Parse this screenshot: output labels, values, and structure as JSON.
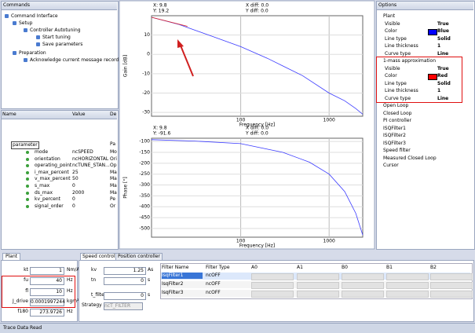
{
  "commands": {
    "title": "Commands",
    "items": [
      "Command Interface",
      "Setup",
      "Controller Autotuning",
      "Start tuning",
      "Save parameters",
      "Preparation",
      "Acknowledge current message record"
    ]
  },
  "parameters": {
    "headers": [
      "Name",
      "Value",
      "De"
    ],
    "root": [
      "parameter",
      "Pa"
    ],
    "rows": [
      [
        "mode",
        "ncSPEED",
        "Mo"
      ],
      [
        "orientation",
        "ncHORIZONTAL",
        "Ori"
      ],
      [
        "operating_point",
        "ncTUNE_STAN...",
        "Op"
      ],
      [
        "i_max_percent",
        "25",
        "Ma"
      ],
      [
        "v_max_percent",
        "50",
        "Ma"
      ],
      [
        "s_max",
        "0",
        "Ma"
      ],
      [
        "ds_max",
        "2000",
        "Ma"
      ],
      [
        "kv_percent",
        "0",
        "Pe"
      ],
      [
        "signal_order",
        "0",
        "Or"
      ]
    ]
  },
  "plots": [
    {
      "cursor_x": "X: 9.8",
      "cursor_y": "Y: 19.2",
      "x_diff": "X diff: 0.0",
      "y_diff": "Y diff: 0.0",
      "ylabel": "Gain [dB]",
      "xlabel": "Frequency [Hz]",
      "log_x": true,
      "xlim": [
        9.8,
        2400
      ],
      "ylim": [
        -32,
        20
      ],
      "xticks": [
        100,
        1000
      ],
      "yticks": [
        10,
        0,
        -10,
        -20,
        -30
      ],
      "series": [
        {
          "color": "#3a3aff",
          "x": [
            9.8,
            20,
            50,
            100,
            200,
            300,
            500,
            1000,
            1500,
            2000,
            2400
          ],
          "y": [
            19.2,
            15.5,
            9,
            4,
            -2,
            -6,
            -11,
            -20,
            -24,
            -28,
            -31
          ]
        },
        {
          "color": "#e02020",
          "x": [
            9.8,
            25
          ],
          "y": [
            19.2,
            14.5
          ]
        }
      ]
    },
    {
      "cursor_x": "X: 9.8",
      "cursor_y": "Y: -91.6",
      "x_diff": "X diff: 0.0",
      "y_diff": "Y diff: 0.0",
      "ylabel": "Phase [°]",
      "xlabel": "Frequency [Hz]",
      "log_x": true,
      "xlim": [
        9.8,
        2400
      ],
      "ylim": [
        -540,
        -85
      ],
      "xticks": [
        100,
        1000
      ],
      "yticks": [
        -100,
        -150,
        -200,
        -250,
        -300,
        -350,
        -400,
        -450,
        -500
      ],
      "series": [
        {
          "color": "#3a3aff",
          "x": [
            9.8,
            30,
            100,
            300,
            600,
            1000,
            1500,
            2000,
            2400
          ],
          "y": [
            -91.6,
            -98,
            -110,
            -150,
            -195,
            -250,
            -330,
            -430,
            -530
          ]
        }
      ]
    }
  ],
  "options": {
    "title": "Options",
    "groups": [
      {
        "name": "Plant",
        "props": [
          [
            "Visible",
            "True"
          ],
          [
            "Color",
            "Blue"
          ],
          [
            "Line type",
            "Solid"
          ],
          [
            "Line thickness",
            "1"
          ],
          [
            "Curve type",
            "Line"
          ]
        ]
      },
      {
        "name": "1-mass approximation",
        "props": [
          [
            "Visible",
            "True"
          ],
          [
            "Color",
            "Red"
          ],
          [
            "Line type",
            "Solid"
          ],
          [
            "Line thickness",
            "1"
          ],
          [
            "Curve type",
            "Line"
          ]
        ]
      }
    ],
    "collapsed": [
      "Open Loop",
      "Closed Loop",
      "PI controller",
      "ISQFilter1",
      "ISQFilter2",
      "ISQFilter3",
      "Speed filter",
      "Measured Closed Loop",
      "Cursor"
    ]
  },
  "plant": {
    "tab": "Plant",
    "rows": [
      [
        "kt",
        "1",
        "Nm/A"
      ],
      [
        "fu",
        "40",
        "Hz"
      ],
      [
        "fl",
        "10",
        "Hz"
      ],
      [
        "J_drive",
        "0.0001997244",
        "kgm²"
      ],
      [
        "f180",
        "273.9726",
        "Hz"
      ]
    ]
  },
  "controller": {
    "tabs": [
      "Speed controller",
      "Position controller"
    ],
    "rows": [
      [
        "kv",
        "1.25",
        "As"
      ],
      [
        "tn",
        "0",
        "s"
      ],
      [
        "t_filter",
        "0",
        "s"
      ]
    ],
    "strategy_label": "Strategy",
    "strategy": "ncT_FILTER"
  },
  "filters": {
    "headers": [
      "Filter Name",
      "Filter Type",
      "A0",
      "A1",
      "B0",
      "B1",
      "B2"
    ],
    "rows": [
      [
        "IsqFilter1",
        "ncOFF"
      ],
      [
        "IsqFilter2",
        "ncOFF"
      ],
      [
        "IsqFilter3",
        "ncOFF"
      ]
    ]
  },
  "status": "Trace Data Read"
}
